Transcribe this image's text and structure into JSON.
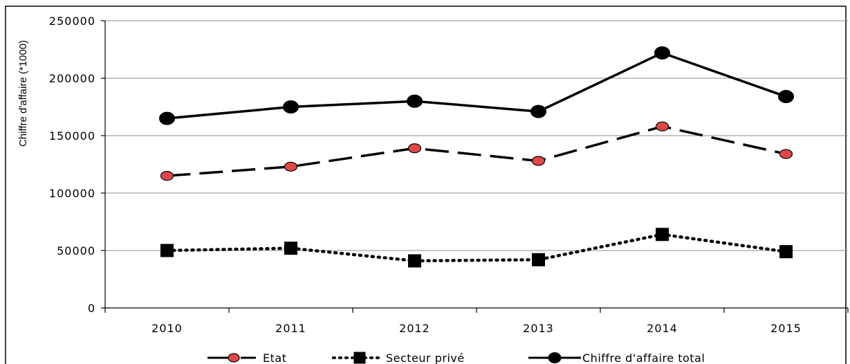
{
  "chart_data": {
    "type": "line",
    "title": "",
    "xlabel": "",
    "ylabel": "Chiffre d'affaire (*1000)",
    "categories": [
      "2010",
      "2011",
      "2012",
      "2013",
      "2014",
      "2015"
    ],
    "ylim": [
      0,
      250000
    ],
    "yticks": [
      0,
      50000,
      100000,
      150000,
      200000,
      250000
    ],
    "grid": true,
    "legend_position": "bottom",
    "series": [
      {
        "name": "Etat",
        "values": [
          115000,
          123000,
          139000,
          128000,
          158000,
          134000
        ],
        "color": "#000000",
        "marker_fill": "#e04848",
        "line_style": "dashed",
        "marker": "circle"
      },
      {
        "name": "Secteur privé",
        "values": [
          50000,
          52000,
          41000,
          42000,
          64000,
          49000
        ],
        "color": "#000000",
        "marker_fill": "#000000",
        "line_style": "dotted",
        "marker": "square"
      },
      {
        "name": "Chiffre d'affaire total",
        "values": [
          165000,
          175000,
          180000,
          171000,
          222000,
          184000
        ],
        "color": "#000000",
        "marker_fill": "#000000",
        "line_style": "solid",
        "marker": "circle"
      }
    ]
  }
}
